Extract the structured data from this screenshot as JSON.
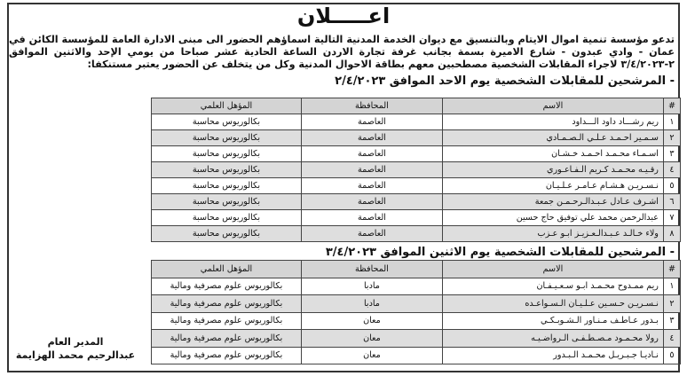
{
  "title": "اعـــــلان",
  "paragraph": "تدعو مؤسسة تنمية اموال الايتام وبالتنسيق مع ديوان الخدمة المدنية التالية اسماؤهم الحضور الى مبنى الادارة العامة للمؤسسة الكائن في عمان - وادي عبدون - شارع الاميرة بسمة بجانب غرفة تجارة الاردن الساعة الحادية عشر صباحا من يومي الإحد والاثنين الموافق ٢-٣/٤/٢٠٢٣ لاجراء المقابلات الشخصية مصطحبين معهم بطاقة الاحوال المدنية وكل من يتخلف عن الحضور يعتبر مستنكفا:",
  "columns": {
    "num": "#",
    "name": "الاسم",
    "governorate": "المحافظة",
    "qualification": "المؤهل العلمي"
  },
  "section1": {
    "heading": "- المرشحين للمقابلات الشخصية يوم الاحد الموافق ٢/٤/٢٠٢٣",
    "rows": [
      {
        "num": "١",
        "name": "ريم رشـــاد داود الـــداود",
        "governorate": "العاصمة",
        "qualification": "بكالوريوس محاسبة"
      },
      {
        "num": "٢",
        "name": "سـمـير احـمـد عـلـي الـصـمـادي",
        "governorate": "العاصمة",
        "qualification": "بكالوريوس محاسبة"
      },
      {
        "num": "٣",
        "name": "اسـمـاء محـمـد احـمـد خـشـان",
        "governorate": "العاصمة",
        "qualification": "بكالوريوس محاسبة"
      },
      {
        "num": "٤",
        "name": "رقـيـه محـمـد كـريم الـفـاعـوري",
        "governorate": "العاصمة",
        "qualification": "بكالوريوس محاسبة"
      },
      {
        "num": "٥",
        "name": "نـسـريـن هـشـام عـامـر عـلـيـان",
        "governorate": "العاصمة",
        "qualification": "بكالوريوس محاسبة"
      },
      {
        "num": "٦",
        "name": "اشـرف عـادل عـبـدالـرحـمـن جمعة",
        "governorate": "العاصمة",
        "qualification": "بكالوريوس محاسبة"
      },
      {
        "num": "٧",
        "name": "عبدالرحمن محمد علي توفيق حاج حسين",
        "governorate": "العاصمة",
        "qualification": "بكالوريوس محاسبة"
      },
      {
        "num": "٨",
        "name": "ولاء خـالـد عـبـدالـعـزيـز ابـو عـزب",
        "governorate": "العاصمة",
        "qualification": "بكالوريوس محاسبة"
      }
    ]
  },
  "section2": {
    "heading": "- المرشحين للمقابلات الشخصية يوم الاثنين الموافق ٣/٤/٢٠٢٣",
    "rows": [
      {
        "num": "١",
        "name": "ريم ممـدوح محـمـد ابـو سـعـيـفـان",
        "governorate": "مادبا",
        "qualification": "بكالوريوس علوم مصرفية ومالية"
      },
      {
        "num": "٢",
        "name": "نـسـريـن حـسـين عـلـيـان الـسـواعـده",
        "governorate": "مادبا",
        "qualification": "بكالوريوس علوم مصرفية ومالية"
      },
      {
        "num": "٣",
        "name": "بـدور عـاطـف مـنـاور الـشـوبـكـي",
        "governorate": "معان",
        "qualification": "بكالوريوس علوم مصرفية ومالية"
      },
      {
        "num": "٤",
        "name": "رولا محـمـود مـصـطـفـى الـرواضـيـه",
        "governorate": "معان",
        "qualification": "بكالوريوس علوم مصرفية ومالية"
      },
      {
        "num": "٥",
        "name": "نـاديـا جـبـريـل محـمـد الـبـدور",
        "governorate": "معان",
        "qualification": "بكالوريوس علوم مصرفية ومالية"
      }
    ]
  },
  "signature": {
    "role": "المدير العام",
    "name": "عبدالرحيم محمد الهزايمة"
  }
}
